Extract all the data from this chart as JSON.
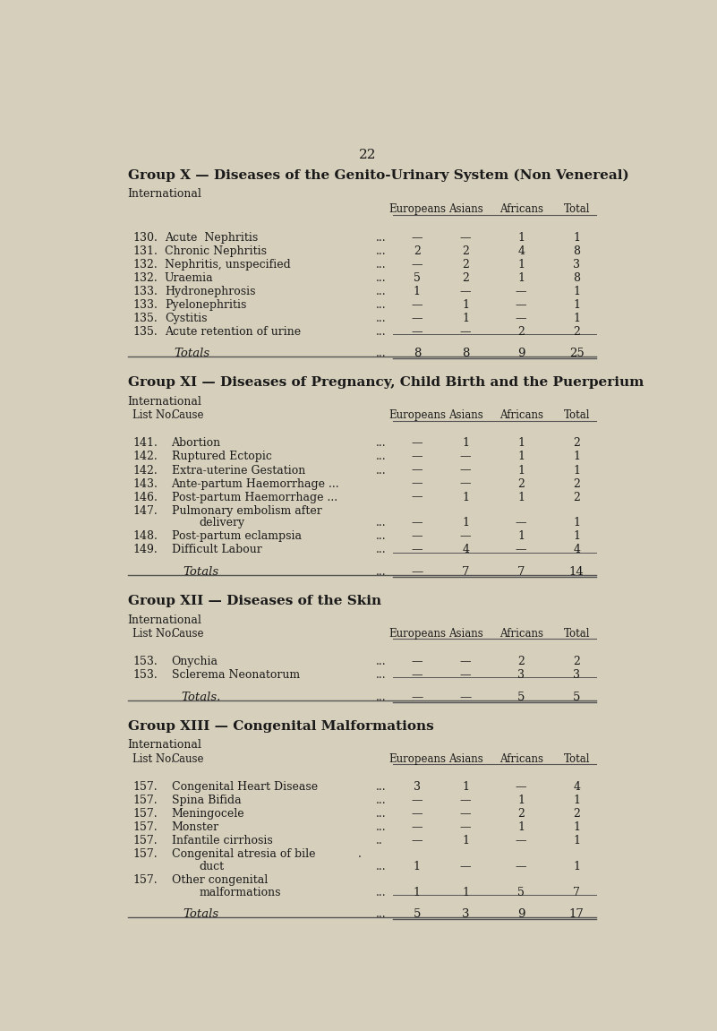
{
  "bg_color": "#d6cfbb",
  "text_color": "#1a1a1a",
  "page_number": "22",
  "groups": [
    {
      "title": "Group X — Diseases of the Genito-Urinary System (Non Venereal)",
      "subtitle": "International",
      "has_listno_col": false,
      "col_headers": [
        "Europeans",
        "Asians",
        "Africans",
        "Total"
      ],
      "rows": [
        {
          "num": "130.",
          "cause": "Acute  Nephritis",
          "dots": "...",
          "vals": [
            "—",
            "—",
            "1",
            "1"
          ]
        },
        {
          "num": "131.",
          "cause": "Chronic Nephritis",
          "dots": "...",
          "vals": [
            "2",
            "2",
            "4",
            "8"
          ]
        },
        {
          "num": "132.",
          "cause": "Nephritis, unspecified",
          "dots": "...",
          "vals": [
            "—",
            "2",
            "1",
            "3"
          ]
        },
        {
          "num": "132.",
          "cause": "Uraemia",
          "dots": "...",
          "vals": [
            "5",
            "2",
            "1",
            "8"
          ]
        },
        {
          "num": "133.",
          "cause": "Hydronephrosis",
          "dots": "...",
          "vals": [
            "1",
            "—",
            "—",
            "1"
          ]
        },
        {
          "num": "133.",
          "cause": "Pyelonephritis",
          "dots": "...",
          "vals": [
            "—",
            "1",
            "—",
            "1"
          ]
        },
        {
          "num": "135.",
          "cause": "Cystitis",
          "dots": "...",
          "vals": [
            "—",
            "1",
            "—",
            "1"
          ]
        },
        {
          "num": "135.",
          "cause": "Acute retention of urine",
          "dots": "...",
          "vals": [
            "—",
            "—",
            "2",
            "2"
          ]
        }
      ],
      "totals": [
        "8",
        "8",
        "9",
        "25"
      ]
    },
    {
      "title": "Group XI — Diseases of Pregnancy, Child Birth and the Puerperium",
      "subtitle": "International",
      "has_listno_col": true,
      "col_headers": [
        "Europeans",
        "Asians",
        "Africans",
        "Total"
      ],
      "rows": [
        {
          "num": "141.",
          "cause": "Abortion",
          "dots": "...",
          "vals": [
            "—",
            "1",
            "1",
            "2"
          ]
        },
        {
          "num": "142.",
          "cause": "Ruptured Ectopic",
          "dots": "...",
          "vals": [
            "—",
            "—",
            "1",
            "1"
          ]
        },
        {
          "num": "142.",
          "cause": "Extra-uterine Gestation",
          "dots": "...",
          "vals": [
            "—",
            "—",
            "1",
            "1"
          ]
        },
        {
          "num": "143.",
          "cause": "Ante-partum Haemorrhage ...",
          "dots": "",
          "vals": [
            "—",
            "—",
            "2",
            "2"
          ]
        },
        {
          "num": "146.",
          "cause": "Post-partum Haemorrhage ...",
          "dots": "",
          "vals": [
            "—",
            "1",
            "1",
            "2"
          ]
        },
        {
          "num": "147.",
          "cause": "Pulmonary embolism after|delivery",
          "dots": "...",
          "vals": [
            "—",
            "1",
            "—",
            "1"
          ]
        },
        {
          "num": "148.",
          "cause": "Post-partum eclampsia",
          "dots": "...",
          "vals": [
            "—",
            "—",
            "1",
            "1"
          ]
        },
        {
          "num": "149.",
          "cause": "Difficult Labour",
          "dots": "...",
          "vals": [
            "—",
            "4",
            "—",
            "4"
          ]
        }
      ],
      "totals": [
        "—",
        "7",
        "7",
        "14"
      ]
    },
    {
      "title": "Group XII — Diseases of the Skin",
      "subtitle": "International",
      "has_listno_col": true,
      "col_headers": [
        "Europeans",
        "Asians",
        "Africans",
        "Total"
      ],
      "rows": [
        {
          "num": "153.",
          "cause": "Onychia",
          "dots": "...",
          "vals": [
            "—",
            "—",
            "2",
            "2"
          ]
        },
        {
          "num": "153.",
          "cause": "Sclerema Neonatorum",
          "dots": "...",
          "vals": [
            "—",
            "—",
            "3",
            "3"
          ]
        }
      ],
      "totals": [
        "—",
        "—",
        "5",
        "5"
      ],
      "totals_label": "Totals."
    },
    {
      "title": "Group XIII — Congenital Malformations",
      "subtitle": "International",
      "has_listno_col": true,
      "col_headers": [
        "Europeans",
        "Asians",
        "Africans",
        "Total"
      ],
      "rows": [
        {
          "num": "157.",
          "cause": "Congenital Heart Disease",
          "dots": "...",
          "vals": [
            "3",
            "1",
            "—",
            "4"
          ]
        },
        {
          "num": "157.",
          "cause": "Spina Bifida",
          "dots": "...",
          "vals": [
            "—",
            "—",
            "1",
            "1"
          ]
        },
        {
          "num": "157.",
          "cause": "Meningocele",
          "dots": "...",
          "vals": [
            "—",
            "—",
            "2",
            "2"
          ]
        },
        {
          "num": "157.",
          "cause": "Monster",
          "dots": "...",
          "vals": [
            "—",
            "—",
            "1",
            "1"
          ]
        },
        {
          "num": "157.",
          "cause": "Infantile cirrhosis",
          "dots": "..",
          "vals": [
            "—",
            "1",
            "—",
            "1"
          ]
        },
        {
          "num": "157.",
          "cause": "Congenital atresia of bile .|duct",
          "dots": "...",
          "vals": [
            "1",
            "—",
            "—",
            "1"
          ]
        },
        {
          "num": "157.",
          "cause": "Other congenital|malformations",
          "dots": "...",
          "vals": [
            "1",
            "1",
            "5",
            "7"
          ]
        }
      ],
      "totals": [
        "5",
        "3",
        "9",
        "17"
      ]
    }
  ]
}
